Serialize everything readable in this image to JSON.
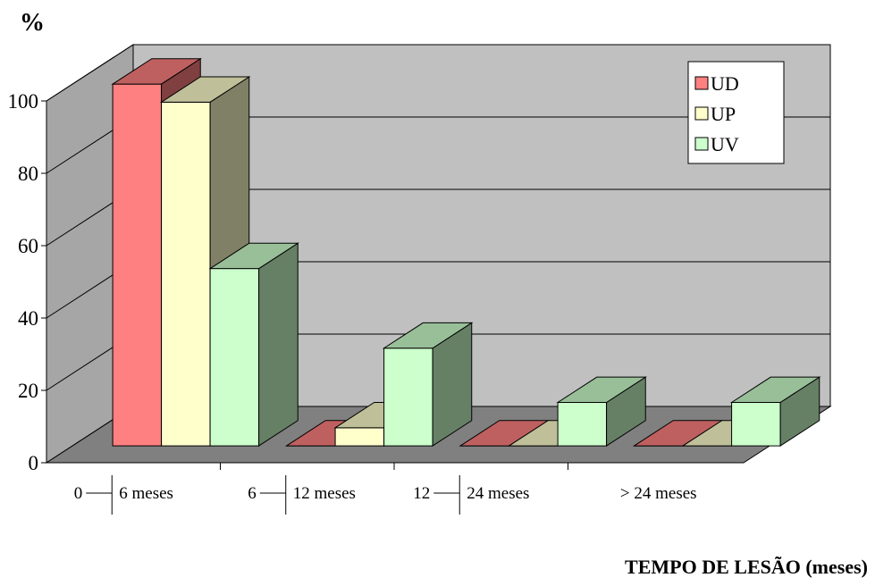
{
  "chart_data": {
    "type": "bar",
    "style": "3d-clustered-column",
    "ylabel": "%",
    "xlabel": "TEMPO DE LESÃO (meses)",
    "ylim": [
      0,
      100
    ],
    "yticks": [
      0,
      20,
      40,
      60,
      80,
      100
    ],
    "grid": true,
    "legend_position": "top-right",
    "categories": [
      {
        "start": "0",
        "end": "6 meses"
      },
      {
        "start": "6",
        "end": "12 meses"
      },
      {
        "start": "12",
        "end": "24 meses"
      },
      {
        "start": "",
        "end": "> 24 meses"
      }
    ],
    "series": [
      {
        "name": "UD",
        "color": "#ff8080",
        "values": [
          100,
          0,
          0,
          0
        ]
      },
      {
        "name": "UP",
        "color": "#ffffcc",
        "values": [
          95,
          5,
          0,
          0
        ]
      },
      {
        "name": "UV",
        "color": "#ccffcc",
        "values": [
          49,
          27,
          12,
          12
        ]
      }
    ]
  }
}
